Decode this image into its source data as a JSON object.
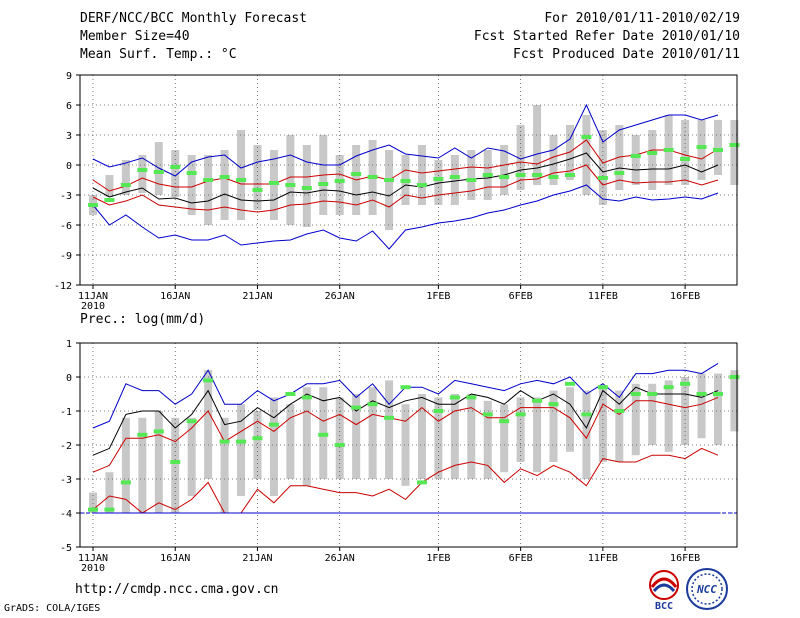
{
  "header": {
    "title": "DERF/NCC/BCC Monthly Forecast",
    "member_size": "Member Size=40",
    "variable": "Mean Surf. Temp.: °C",
    "period": "For 2010/01/11-2010/02/19",
    "fcst_started": "Fcst Started Refer Date 2010/01/10",
    "fcst_produced": "Fcst Produced Date 2010/01/11"
  },
  "footer": {
    "url": "http://cmdp.ncc.cma.gov.cn",
    "grads": "GrADS: COLA/IGES",
    "logo_left": "BCC",
    "logo_right": "NCC"
  },
  "colors": {
    "ensemble_mean": "#000000",
    "spread": "#cc0000",
    "extremes": "#0000cc",
    "box": "#c8c8c8",
    "observed": "#55e855"
  },
  "chart_data": [
    {
      "type": "line",
      "name": "temperature",
      "title": "Mean Surf. Temp.: °C",
      "ylim": [
        -12,
        9
      ],
      "yticks": [
        -12,
        -9,
        -6,
        -3,
        0,
        3,
        6,
        9
      ],
      "ytick_labels": [
        "-12",
        "-9",
        "-6",
        "-3",
        "0",
        "3",
        "6",
        "9"
      ],
      "xlim": [
        0,
        40
      ],
      "xticks": [
        0,
        5,
        10,
        15,
        21,
        26,
        31,
        36
      ],
      "xtick_labels": [
        "11JAN",
        "16JAN",
        "21JAN",
        "26JAN",
        "1FEB",
        "6FEB",
        "11FEB",
        "16FEB"
      ],
      "xtick_sublabel": "2010",
      "grid": true,
      "x": [
        0,
        1,
        2,
        3,
        4,
        5,
        6,
        7,
        8,
        9,
        10,
        11,
        12,
        13,
        14,
        15,
        16,
        17,
        18,
        19,
        20,
        21,
        22,
        23,
        24,
        25,
        26,
        27,
        28,
        29,
        30,
        31,
        32,
        33,
        34,
        35,
        36,
        37,
        38
      ],
      "series": [
        {
          "name": "Max",
          "color": "#0000cc",
          "values": [
            0.6,
            -0.2,
            0.2,
            0.7,
            -0.3,
            -1.1,
            0.3,
            0.8,
            1.0,
            -0.3,
            0.3,
            0.6,
            1.0,
            0.3,
            0.0,
            0.0,
            0.9,
            1.5,
            2.0,
            1.1,
            0.9,
            0.7,
            1.7,
            0.7,
            1.7,
            1.4,
            0.6,
            1.1,
            1.5,
            2.6,
            6.0,
            2.3,
            3.5,
            4.0,
            4.5,
            5.0,
            5.0,
            4.5,
            5.0
          ]
        },
        {
          "name": "Upper",
          "color": "#cc0000",
          "values": [
            -1.5,
            -2.6,
            -2.1,
            -1.3,
            -1.9,
            -2.2,
            -2.2,
            -1.6,
            -1.3,
            -1.9,
            -1.9,
            -1.9,
            -1.2,
            -1.2,
            -1.0,
            -0.9,
            -1.5,
            -1.1,
            -1.5,
            -0.5,
            -0.8,
            -0.6,
            -0.4,
            -0.2,
            -0.3,
            0.0,
            0.3,
            0.1,
            0.8,
            1.3,
            2.5,
            0.2,
            0.8,
            1.0,
            1.5,
            1.5,
            1.0,
            0.6,
            1.6
          ]
        },
        {
          "name": "Mean",
          "color": "#000000",
          "values": [
            -2.3,
            -3.2,
            -2.7,
            -2.3,
            -3.4,
            -3.3,
            -3.8,
            -3.6,
            -2.9,
            -3.5,
            -3.6,
            -3.5,
            -2.7,
            -2.8,
            -2.5,
            -2.6,
            -3.0,
            -2.7,
            -3.1,
            -2.0,
            -2.2,
            -1.8,
            -1.6,
            -1.4,
            -1.3,
            -1.0,
            -0.5,
            -0.3,
            0.1,
            0.6,
            1.2,
            -0.7,
            -0.3,
            -0.5,
            -0.4,
            -0.4,
            0.0,
            -0.7,
            0.0
          ]
        },
        {
          "name": "Lower",
          "color": "#cc0000",
          "values": [
            -3.2,
            -4.0,
            -3.6,
            -3.0,
            -4.0,
            -4.2,
            -4.4,
            -4.5,
            -4.2,
            -4.5,
            -4.7,
            -4.5,
            -4.0,
            -3.9,
            -3.6,
            -3.7,
            -4.0,
            -3.5,
            -4.2,
            -3.0,
            -3.3,
            -3.0,
            -2.8,
            -2.6,
            -2.2,
            -2.2,
            -1.5,
            -1.4,
            -0.8,
            -0.6,
            0.0,
            -2.0,
            -1.5,
            -1.8,
            -1.7,
            -1.7,
            -1.5,
            -2.0,
            -1.5
          ]
        },
        {
          "name": "Min",
          "color": "#0000cc",
          "values": [
            -4.0,
            -6.0,
            -5.0,
            -6.2,
            -7.3,
            -7.0,
            -7.5,
            -7.5,
            -7.0,
            -8.0,
            -7.8,
            -7.6,
            -7.5,
            -6.9,
            -6.5,
            -7.3,
            -7.6,
            -6.6,
            -8.4,
            -6.5,
            -6.2,
            -5.8,
            -5.6,
            -5.3,
            -4.8,
            -4.5,
            -4.0,
            -3.6,
            -3.0,
            -2.6,
            -2.0,
            -3.4,
            -3.6,
            -3.2,
            -3.5,
            -3.4,
            -3.2,
            -3.4,
            -2.8
          ]
        }
      ],
      "boxes": {
        "x": [
          0,
          1,
          2,
          3,
          4,
          5,
          6,
          7,
          8,
          9,
          10,
          11,
          12,
          13,
          14,
          15,
          16,
          17,
          18,
          19,
          20,
          21,
          22,
          23,
          24,
          25,
          26,
          27,
          28,
          29,
          30,
          31,
          32,
          33,
          34,
          35,
          36,
          37,
          38,
          39
        ],
        "low": [
          -5.0,
          -3.2,
          -3.0,
          -2.8,
          -3.0,
          -3.2,
          -5.0,
          -6.0,
          -5.5,
          -5.5,
          -4.5,
          -5.5,
          -6.0,
          -6.2,
          -5.0,
          -5.0,
          -5.0,
          -5.0,
          -6.5,
          -4.0,
          -4.0,
          -4.0,
          -4.0,
          -3.5,
          -3.5,
          -3.0,
          -2.5,
          -2.0,
          -2.0,
          -1.5,
          -3.0,
          -4.0,
          -2.5,
          -2.0,
          -2.5,
          -2.0,
          -2.0,
          -1.5,
          -1.0,
          -2.0
        ],
        "high": [
          -3.0,
          -1.0,
          0.5,
          1.0,
          2.3,
          1.5,
          1.0,
          1.0,
          1.5,
          3.5,
          2.0,
          1.5,
          3.0,
          2.0,
          3.0,
          1.0,
          2.0,
          2.5,
          1.5,
          1.0,
          2.0,
          0.5,
          1.0,
          1.5,
          1.5,
          2.0,
          4.0,
          6.0,
          3.0,
          4.0,
          5.0,
          3.5,
          4.0,
          3.0,
          3.5,
          5.0,
          4.5,
          4.5,
          4.5,
          4.5
        ]
      },
      "observed": {
        "x": [
          0,
          1,
          2,
          3,
          4,
          5,
          6,
          7,
          8,
          9,
          10,
          11,
          12,
          13,
          14,
          15,
          16,
          17,
          18,
          19,
          20,
          21,
          22,
          23,
          24,
          25,
          26,
          27,
          28,
          29,
          30,
          31,
          32,
          33,
          34,
          35,
          36,
          37,
          38,
          39
        ],
        "values": [
          -4.0,
          -3.5,
          -2.0,
          -0.5,
          -0.7,
          -0.2,
          -0.8,
          -1.5,
          -1.2,
          -1.5,
          -2.5,
          -1.8,
          -2.0,
          -2.3,
          -1.9,
          -1.6,
          -0.9,
          -1.2,
          -1.5,
          -1.6,
          -2.0,
          -1.4,
          -1.2,
          -1.5,
          -1.0,
          -1.2,
          -1.0,
          -1.0,
          -1.2,
          -1.0,
          2.8,
          -1.3,
          -0.8,
          0.9,
          1.2,
          1.5,
          0.6,
          1.8,
          1.5,
          2.0
        ]
      }
    },
    {
      "type": "line",
      "name": "precipitation",
      "title": "Prec.: log(mm/d)",
      "ylim": [
        -5,
        1
      ],
      "yticks": [
        -5,
        -4,
        -3,
        -2,
        -1,
        0,
        1
      ],
      "ytick_labels": [
        "-5",
        "-4",
        "-3",
        "-2",
        "-1",
        "0",
        "1"
      ],
      "xlim": [
        0,
        40
      ],
      "xticks": [
        0,
        5,
        10,
        15,
        21,
        26,
        31,
        36
      ],
      "xtick_labels": [
        "11JAN",
        "16JAN",
        "21JAN",
        "26JAN",
        "1FEB",
        "6FEB",
        "11FEB",
        "16FEB"
      ],
      "xtick_sublabel": "2010",
      "grid": true,
      "baseline": -4,
      "x": [
        0,
        1,
        2,
        3,
        4,
        5,
        6,
        7,
        8,
        9,
        10,
        11,
        12,
        13,
        14,
        15,
        16,
        17,
        18,
        19,
        20,
        21,
        22,
        23,
        24,
        25,
        26,
        27,
        28,
        29,
        30,
        31,
        32,
        33,
        34,
        35,
        36,
        37,
        38
      ],
      "series": [
        {
          "name": "Max",
          "color": "#0000cc",
          "values": [
            -1.5,
            -1.3,
            -0.2,
            -0.4,
            -0.4,
            -0.8,
            -0.5,
            0.2,
            -0.8,
            -0.8,
            -0.4,
            -0.7,
            -0.5,
            -0.2,
            -0.2,
            -0.1,
            -0.6,
            -0.2,
            -0.8,
            -0.3,
            -0.3,
            -0.5,
            -0.1,
            -0.2,
            -0.3,
            -0.4,
            -0.2,
            -0.1,
            -0.2,
            0.0,
            -0.5,
            -0.2,
            -0.6,
            0.1,
            0.1,
            0.2,
            0.2,
            0.1,
            0.4
          ]
        },
        {
          "name": "Upper",
          "color": "#000000",
          "values": [
            -2.3,
            -2.1,
            -1.1,
            -1.0,
            -1.0,
            -1.5,
            -1.1,
            -0.4,
            -1.4,
            -1.3,
            -0.9,
            -1.2,
            -0.8,
            -0.5,
            -0.7,
            -0.6,
            -1.0,
            -0.7,
            -0.9,
            -0.7,
            -0.6,
            -0.8,
            -0.8,
            -0.5,
            -0.6,
            -0.8,
            -0.4,
            -0.7,
            -0.5,
            -0.8,
            -1.5,
            -0.4,
            -0.8,
            -0.3,
            -0.5,
            -0.5,
            -0.5,
            -0.6,
            -0.4
          ]
        },
        {
          "name": "Mean",
          "color": "#cc0000",
          "values": [
            -2.8,
            -2.6,
            -1.8,
            -1.8,
            -1.7,
            -1.9,
            -1.5,
            -1.0,
            -1.9,
            -1.6,
            -1.3,
            -1.6,
            -1.2,
            -1.0,
            -1.3,
            -1.1,
            -1.4,
            -1.1,
            -1.2,
            -1.3,
            -0.9,
            -1.3,
            -1.0,
            -0.9,
            -1.2,
            -1.2,
            -0.9,
            -0.9,
            -0.9,
            -1.2,
            -1.8,
            -0.8,
            -1.1,
            -0.7,
            -0.7,
            -0.8,
            -0.9,
            -0.8,
            -0.6
          ]
        },
        {
          "name": "Lower",
          "color": "#cc0000",
          "values": [
            -3.9,
            -3.5,
            -3.6,
            -4.0,
            -3.7,
            -3.9,
            -3.6,
            -3.1,
            -4.0,
            -4.0,
            -3.3,
            -3.7,
            -3.2,
            -3.2,
            -3.3,
            -3.4,
            -3.4,
            -3.5,
            -3.3,
            -3.6,
            -3.1,
            -2.8,
            -2.6,
            -2.5,
            -2.6,
            -3.1,
            -2.7,
            -2.9,
            -2.6,
            -2.8,
            -3.2,
            -2.4,
            -2.5,
            -2.5,
            -2.3,
            -2.3,
            -2.4,
            -2.1,
            -2.3
          ]
        },
        {
          "name": "Min",
          "color": "#0000cc",
          "values": [
            -4.0,
            -4.0,
            -4.0,
            -4.0,
            -4.0,
            -4.0,
            -4.0,
            -4.0,
            -4.0,
            -4.0,
            -4.0,
            -4.0,
            -4.0,
            -4.0,
            -4.0,
            -4.0,
            -4.0,
            -4.0,
            -4.0,
            -4.0,
            -4.0,
            -4.0,
            -4.0,
            -4.0,
            -4.0,
            -4.0,
            -4.0,
            -4.0,
            -4.0,
            -4.0,
            -4.0,
            -4.0,
            -4.0,
            -4.0,
            -4.0,
            -4.0,
            -4.0,
            -4.0,
            -4.0
          ]
        }
      ],
      "boxes": {
        "x": [
          0,
          1,
          2,
          3,
          4,
          5,
          6,
          7,
          8,
          9,
          10,
          11,
          12,
          13,
          14,
          15,
          16,
          17,
          18,
          19,
          20,
          21,
          22,
          23,
          24,
          25,
          26,
          27,
          28,
          29,
          30,
          31,
          32,
          33,
          34,
          35,
          36,
          37,
          38,
          39
        ],
        "low": [
          -4.0,
          -4.0,
          -4.0,
          -4.0,
          -4.0,
          -4.0,
          -3.5,
          -3.0,
          -4.0,
          -3.5,
          -3.0,
          -3.5,
          -3.0,
          -3.2,
          -3.0,
          -3.0,
          -3.0,
          -3.0,
          -3.0,
          -3.2,
          -3.0,
          -3.0,
          -3.0,
          -3.0,
          -3.0,
          -2.8,
          -2.5,
          -2.8,
          -2.5,
          -2.2,
          -3.0,
          -2.5,
          -2.5,
          -2.3,
          -2.0,
          -2.2,
          -2.0,
          -1.8,
          -2.0,
          -1.6
        ],
        "high": [
          -3.4,
          -2.8,
          -1.2,
          -1.2,
          -1.0,
          -1.2,
          -1.2,
          0.2,
          -1.2,
          -0.8,
          -1.0,
          -0.6,
          -0.8,
          -0.3,
          -0.3,
          -0.6,
          -0.5,
          -0.3,
          -0.1,
          -0.8,
          -0.5,
          -0.6,
          -0.5,
          -0.5,
          -0.7,
          -0.8,
          -0.6,
          -0.6,
          -0.4,
          -0.3,
          -0.4,
          -0.3,
          -0.4,
          -0.2,
          -0.2,
          -0.1,
          0.0,
          0.1,
          0.1,
          0.2
        ]
      },
      "observed": {
        "x": [
          0,
          1,
          2,
          3,
          4,
          5,
          6,
          7,
          8,
          9,
          10,
          11,
          12,
          13,
          14,
          15,
          16,
          17,
          18,
          19,
          20,
          21,
          22,
          23,
          24,
          25,
          26,
          27,
          28,
          29,
          30,
          31,
          32,
          33,
          34,
          35,
          36,
          37,
          38,
          39
        ],
        "values": [
          -3.9,
          -3.9,
          -3.1,
          -1.7,
          -1.6,
          -2.5,
          -1.3,
          -0.1,
          -1.9,
          -1.9,
          -1.8,
          -1.4,
          -0.5,
          -0.6,
          -1.7,
          -2.0,
          -0.9,
          -0.8,
          -1.2,
          -0.3,
          -3.1,
          -1.0,
          -0.6,
          -0.6,
          -1.1,
          -1.3,
          -1.1,
          -0.7,
          -0.8,
          -0.2,
          -1.1,
          -0.3,
          -1.0,
          -0.5,
          -0.5,
          -0.3,
          -0.2,
          -0.5,
          -0.5,
          0.0
        ]
      }
    }
  ]
}
